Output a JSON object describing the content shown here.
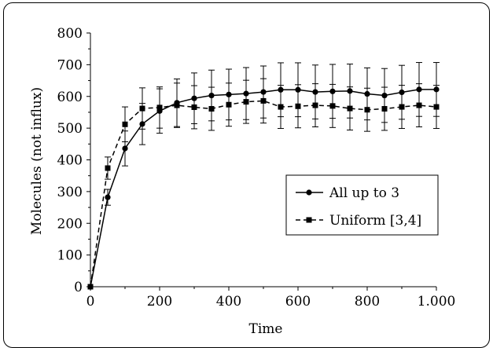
{
  "chart_data": {
    "type": "line",
    "title": "",
    "xlabel": "Time",
    "ylabel": "Molecules (not influx)",
    "xlim": [
      0,
      1000
    ],
    "ylim": [
      0,
      800
    ],
    "x_ticks": [
      0,
      200,
      400,
      600,
      800,
      1000
    ],
    "x_tick_labels": [
      "0",
      "200",
      "400",
      "600",
      "800",
      "1.000"
    ],
    "y_ticks": [
      0,
      100,
      200,
      300,
      400,
      500,
      600,
      700,
      800
    ],
    "y_tick_labels": [
      "0",
      "100",
      "200",
      "300",
      "400",
      "500",
      "600",
      "700",
      "800"
    ],
    "grid": false,
    "legend_position": "bottom-right",
    "series": [
      {
        "name": "All up to 3",
        "marker": "circle",
        "line_style": "solid",
        "color": "#000000",
        "x": [
          0,
          50,
          100,
          150,
          200,
          250,
          300,
          350,
          400,
          450,
          500,
          550,
          600,
          650,
          700,
          750,
          800,
          850,
          900,
          950,
          1000
        ],
        "y": [
          0,
          282,
          436,
          513,
          554,
          580,
          594,
          603,
          606,
          609,
          614,
          621,
          621,
          614,
          616,
          617,
          608,
          603,
          613,
          622,
          622
        ],
        "err": [
          0,
          25,
          55,
          65,
          70,
          75,
          80,
          80,
          80,
          82,
          82,
          85,
          85,
          85,
          85,
          85,
          82,
          85,
          85,
          85,
          85
        ]
      },
      {
        "name": "Uniform [3,4]",
        "marker": "square",
        "line_style": "dashed",
        "color": "#000000",
        "x": [
          0,
          50,
          100,
          150,
          200,
          250,
          300,
          350,
          400,
          450,
          500,
          550,
          600,
          650,
          700,
          750,
          800,
          850,
          900,
          950,
          1000
        ],
        "y": [
          0,
          374,
          512,
          562,
          565,
          572,
          566,
          561,
          574,
          583,
          586,
          567,
          569,
          572,
          570,
          562,
          558,
          561,
          567,
          572,
          567
        ],
        "err": [
          0,
          35,
          55,
          65,
          65,
          70,
          68,
          68,
          68,
          68,
          70,
          68,
          68,
          68,
          68,
          68,
          68,
          68,
          68,
          68,
          68
        ]
      }
    ]
  }
}
